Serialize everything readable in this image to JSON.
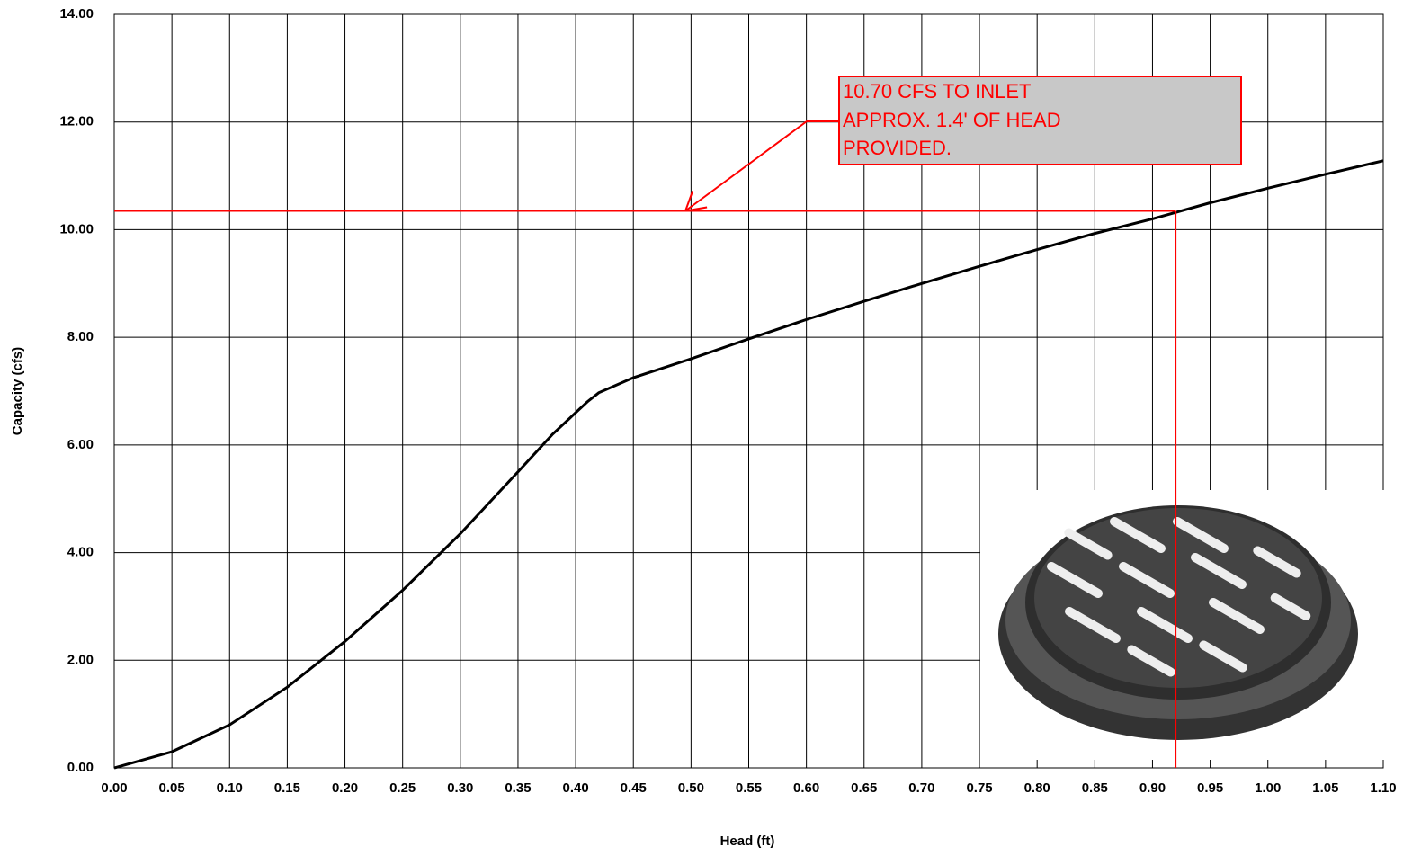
{
  "chart_data": {
    "type": "line",
    "x_label": "Head (ft)",
    "y_label": "Capacity (cfs)",
    "x": [
      0,
      0.05,
      0.1,
      0.15,
      0.2,
      0.25,
      0.3,
      0.35,
      0.38,
      0.41,
      0.42,
      0.45,
      0.5,
      0.55,
      0.6,
      0.65,
      0.7,
      0.75,
      0.8,
      0.85,
      0.9,
      0.95,
      1.0,
      1.05,
      1.1
    ],
    "series": [
      {
        "color": "#000000",
        "values": [
          0,
          0.3,
          0.8,
          1.5,
          2.35,
          3.3,
          4.35,
          5.5,
          6.2,
          6.8,
          6.97,
          7.25,
          7.6,
          7.97,
          8.33,
          8.67,
          9.0,
          9.32,
          9.63,
          9.93,
          10.2,
          10.5,
          10.77,
          11.03,
          11.28
        ]
      }
    ],
    "xlim": [
      0,
      1.1
    ],
    "xticks": [
      {
        "value": 0,
        "label": "0.00"
      },
      {
        "value": 0.05,
        "label": "0.05"
      },
      {
        "value": 0.1,
        "label": "0.10"
      },
      {
        "value": 0.15,
        "label": "0.15"
      },
      {
        "value": 0.2,
        "label": "0.20"
      },
      {
        "value": 0.25,
        "label": "0.25"
      },
      {
        "value": 0.3,
        "label": "0.30"
      },
      {
        "value": 0.35,
        "label": "0.35"
      },
      {
        "value": 0.4,
        "label": "0.40"
      },
      {
        "value": 0.45,
        "label": "0.45"
      },
      {
        "value": 0.5,
        "label": "0.50"
      },
      {
        "value": 0.55,
        "label": "0.55"
      },
      {
        "value": 0.6,
        "label": "0.60"
      },
      {
        "value": 0.65,
        "label": "0.65"
      },
      {
        "value": 0.7,
        "label": "0.70"
      },
      {
        "value": 0.75,
        "label": "0.75"
      },
      {
        "value": 0.8,
        "label": "0.80"
      },
      {
        "value": 0.85,
        "label": "0.85"
      },
      {
        "value": 0.9,
        "label": "0.90"
      },
      {
        "value": 0.95,
        "label": "0.95"
      },
      {
        "value": 1.0,
        "label": "1.00"
      },
      {
        "value": 1.05,
        "label": "1.05"
      },
      {
        "value": 1.1,
        "label": "1.10"
      }
    ],
    "ylim": [
      0,
      14
    ],
    "yticks": [
      {
        "value": 0,
        "label": "0.00"
      },
      {
        "value": 2,
        "label": "2.00"
      },
      {
        "value": 4,
        "label": "4.00"
      },
      {
        "value": 6,
        "label": "6.00"
      },
      {
        "value": 8,
        "label": "8.00"
      },
      {
        "value": 10,
        "label": "10.00"
      },
      {
        "value": 12,
        "label": "12.00"
      },
      {
        "value": 14,
        "label": "14.00"
      }
    ],
    "grid": true,
    "annotation": {
      "lines": [
        "10.70 CFS TO INLET",
        "APPROX. 1.4' OF HEAD",
        "PROVIDED."
      ],
      "x": 0.92,
      "y": 10.35,
      "color": "#ff0000"
    }
  }
}
